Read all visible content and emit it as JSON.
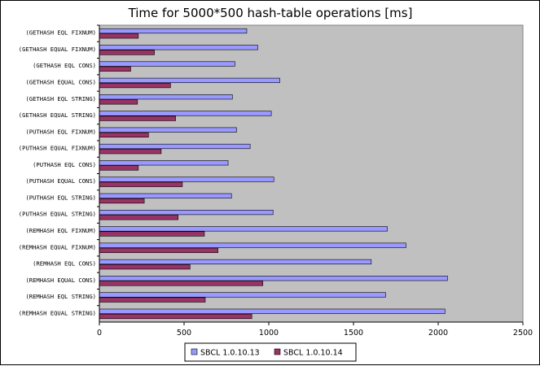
{
  "chart_data": {
    "type": "bar",
    "orientation": "horizontal",
    "title": "Time for 5000*500 hash-table operations [ms]",
    "xlabel": "",
    "ylabel": "",
    "xlim": [
      0,
      2500
    ],
    "x_ticks": [
      "0",
      "500",
      "1000",
      "1500",
      "2000",
      "2500"
    ],
    "grid": false,
    "legend_position": "bottom",
    "plot_background": "#c0c0c0",
    "categories": [
      "(GETHASH EQL FIXNUM)",
      "(GETHASH EQUAL FIXNUM)",
      "(GETHASH EQL CONS)",
      "(GETHASH EQUAL CONS)",
      "(GETHASH EQL STRING)",
      "(GETHASH EQUAL STRING)",
      "(PUTHASH EQL FIXNUM)",
      "(PUTHASH EQUAL FIXNUM)",
      "(PUTHASH EQL CONS)",
      "(PUTHASH EQUAL CONS)",
      "(PUTHASH EQL STRING)",
      "(PUTHASH EQUAL STRING)",
      "(REMHASH EQL FIXNUM)",
      "(REMHASH EQUAL FIXNUM)",
      "(REMHASH EQL CONS)",
      "(REMHASH EQUAL CONS)",
      "(REMHASH EQL STRING)",
      "(REMHASH EQUAL STRING)"
    ],
    "series": [
      {
        "name": "SBCL 1.0.10.13",
        "color": "#9999ff",
        "values": [
          870,
          935,
          800,
          1065,
          785,
          1015,
          810,
          890,
          760,
          1030,
          780,
          1025,
          1700,
          1810,
          1605,
          2055,
          1690,
          2040
        ]
      },
      {
        "name": "SBCL 1.0.10.14",
        "color": "#993366",
        "values": [
          230,
          325,
          185,
          420,
          225,
          450,
          290,
          365,
          230,
          490,
          265,
          465,
          620,
          700,
          535,
          965,
          625,
          900
        ]
      }
    ]
  }
}
